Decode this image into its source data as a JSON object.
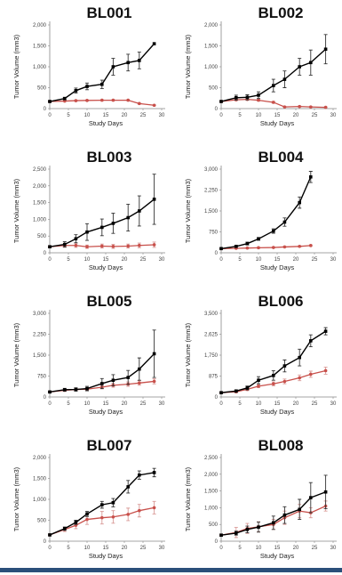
{
  "colors": {
    "treated": "#c8504b",
    "control": "#000000",
    "error_treated": "#d99a97",
    "error_control": "#333333",
    "footer": "#2b4f7a"
  },
  "chart_data": [
    {
      "type": "line",
      "title": "BL001",
      "xlabel": "Study Days",
      "ylabel": "Tumor Volume (mm3)",
      "xlim": [
        0,
        30
      ],
      "xticks": [
        0,
        5,
        10,
        15,
        20,
        25,
        30
      ],
      "ylim": [
        0,
        2000
      ],
      "yticks": [
        "0",
        "500",
        "1,000",
        "1,500",
        "2,000"
      ],
      "series": [
        {
          "role": "control",
          "x": [
            0,
            4,
            7,
            10,
            14,
            17,
            21,
            24,
            28
          ],
          "y": [
            170,
            240,
            430,
            530,
            580,
            1000,
            1100,
            1150,
            1550
          ],
          "err": [
            20,
            30,
            60,
            80,
            100,
            200,
            200,
            200,
            0
          ]
        },
        {
          "role": "treated",
          "x": [
            0,
            4,
            7,
            10,
            14,
            17,
            21,
            24,
            28
          ],
          "y": [
            170,
            180,
            190,
            195,
            200,
            200,
            200,
            120,
            80
          ],
          "err": [
            10,
            10,
            10,
            10,
            10,
            10,
            10,
            10,
            10
          ]
        }
      ]
    },
    {
      "type": "line",
      "title": "BL002",
      "xlabel": "Study Days",
      "ylabel": "Tumor Volume (mm3)",
      "xlim": [
        0,
        30
      ],
      "xticks": [
        0,
        5,
        10,
        15,
        20,
        25,
        30
      ],
      "ylim": [
        0,
        2000
      ],
      "yticks": [
        "0",
        "500",
        "1,000",
        "1,500",
        "2,000"
      ],
      "series": [
        {
          "role": "control",
          "x": [
            0,
            4,
            7,
            10,
            14,
            17,
            21,
            24,
            28
          ],
          "y": [
            170,
            260,
            270,
            320,
            550,
            700,
            1000,
            1100,
            1420
          ],
          "err": [
            20,
            60,
            60,
            80,
            150,
            200,
            200,
            300,
            350
          ]
        },
        {
          "role": "treated",
          "x": [
            0,
            4,
            7,
            10,
            14,
            17,
            21,
            24,
            28
          ],
          "y": [
            170,
            210,
            220,
            200,
            150,
            40,
            50,
            40,
            30
          ],
          "err": [
            15,
            20,
            20,
            20,
            20,
            10,
            10,
            10,
            10
          ]
        }
      ]
    },
    {
      "type": "line",
      "title": "BL003",
      "xlabel": "Study Days",
      "ylabel": "Tumor Volume (mm3)",
      "xlim": [
        0,
        30
      ],
      "xticks": [
        0,
        5,
        10,
        15,
        20,
        25,
        30
      ],
      "ylim": [
        0,
        2500
      ],
      "yticks": [
        "0",
        "500",
        "1,000",
        "1,500",
        "2,000",
        "2,500"
      ],
      "series": [
        {
          "role": "control",
          "x": [
            0,
            4,
            7,
            10,
            14,
            17,
            21,
            24,
            28
          ],
          "y": [
            180,
            250,
            420,
            620,
            760,
            880,
            1050,
            1250,
            1600
          ],
          "err": [
            30,
            80,
            120,
            250,
            250,
            300,
            400,
            450,
            750
          ]
        },
        {
          "role": "treated",
          "x": [
            0,
            4,
            7,
            10,
            14,
            17,
            21,
            24,
            28
          ],
          "y": [
            180,
            220,
            220,
            180,
            200,
            190,
            200,
            220,
            240
          ],
          "err": [
            20,
            60,
            60,
            50,
            60,
            60,
            60,
            70,
            80
          ]
        }
      ]
    },
    {
      "type": "line",
      "title": "BL004",
      "xlabel": "Study Days",
      "ylabel": "Tumor Volume (mm3)",
      "xlim": [
        0,
        30
      ],
      "xticks": [
        0,
        5,
        10,
        15,
        20,
        25,
        30
      ],
      "ylim": [
        0,
        3000
      ],
      "yticks": [
        "0",
        "750",
        "1,500",
        "2,250",
        "3,000"
      ],
      "series": [
        {
          "role": "control",
          "x": [
            0,
            4,
            7,
            10,
            14,
            17,
            21,
            24
          ],
          "y": [
            150,
            230,
            330,
            500,
            780,
            1100,
            1800,
            2720
          ],
          "err": [
            20,
            30,
            50,
            50,
            80,
            150,
            200,
            200
          ]
        },
        {
          "role": "treated",
          "x": [
            0,
            4,
            7,
            10,
            14,
            17,
            21,
            24
          ],
          "y": [
            150,
            160,
            170,
            180,
            190,
            210,
            230,
            260
          ],
          "err": [
            15,
            15,
            15,
            15,
            15,
            15,
            20,
            20
          ]
        }
      ]
    },
    {
      "type": "line",
      "title": "BL005",
      "xlabel": "Study Days",
      "ylabel": "Tumor Volume (mm3)",
      "xlim": [
        0,
        30
      ],
      "xticks": [
        0,
        5,
        10,
        15,
        20,
        25,
        30
      ],
      "ylim": [
        0,
        3000
      ],
      "yticks": [
        "0",
        "750",
        "1,500",
        "2,250",
        "3,000"
      ],
      "series": [
        {
          "role": "control",
          "x": [
            0,
            4,
            7,
            10,
            14,
            17,
            21,
            24,
            28
          ],
          "y": [
            180,
            260,
            270,
            300,
            480,
            600,
            700,
            1000,
            1550
          ],
          "err": [
            20,
            50,
            60,
            80,
            180,
            200,
            250,
            400,
            850
          ]
        },
        {
          "role": "treated",
          "x": [
            0,
            4,
            7,
            10,
            14,
            17,
            21,
            24,
            28
          ],
          "y": [
            180,
            240,
            270,
            280,
            350,
            420,
            460,
            500,
            560
          ],
          "err": [
            20,
            30,
            40,
            50,
            60,
            70,
            80,
            80,
            90
          ]
        }
      ]
    },
    {
      "type": "line",
      "title": "BL006",
      "xlabel": "Study Days",
      "ylabel": "Tumor Volume (mm3)",
      "xlim": [
        0,
        30
      ],
      "xticks": [
        0,
        5,
        10,
        15,
        20,
        25,
        30
      ],
      "ylim": [
        0,
        3500
      ],
      "yticks": [
        "0",
        "875",
        "1,750",
        "2,625",
        "3,500"
      ],
      "series": [
        {
          "role": "control",
          "x": [
            0,
            4,
            7,
            10,
            14,
            17,
            21,
            24,
            28
          ],
          "y": [
            180,
            250,
            380,
            700,
            900,
            1300,
            1650,
            2350,
            2750
          ],
          "err": [
            30,
            50,
            80,
            150,
            200,
            250,
            350,
            250,
            150
          ]
        },
        {
          "role": "treated",
          "x": [
            0,
            4,
            7,
            10,
            14,
            17,
            21,
            24,
            28
          ],
          "y": [
            180,
            220,
            320,
            450,
            550,
            650,
            800,
            950,
            1100
          ],
          "err": [
            20,
            40,
            50,
            60,
            80,
            100,
            120,
            130,
            150
          ]
        }
      ]
    },
    {
      "type": "line",
      "title": "BL007",
      "xlabel": "Study Days",
      "ylabel": "Tumor Volume (mm3)",
      "xlim": [
        0,
        30
      ],
      "xticks": [
        0,
        5,
        10,
        15,
        20,
        25,
        30
      ],
      "ylim": [
        0,
        2000
      ],
      "yticks": [
        "0",
        "500",
        "1,000",
        "1,500",
        "2,000"
      ],
      "series": [
        {
          "role": "control",
          "x": [
            0,
            4,
            7,
            10,
            14,
            17,
            21,
            24,
            28
          ],
          "y": [
            150,
            300,
            450,
            650,
            870,
            920,
            1300,
            1580,
            1640
          ],
          "err": [
            20,
            40,
            50,
            60,
            80,
            100,
            150,
            100,
            100
          ]
        },
        {
          "role": "treated",
          "x": [
            0,
            4,
            7,
            10,
            14,
            17,
            21,
            24,
            28
          ],
          "y": [
            150,
            280,
            380,
            520,
            560,
            580,
            640,
            730,
            800
          ],
          "err": [
            20,
            50,
            80,
            120,
            150,
            150,
            150,
            150,
            150
          ]
        }
      ]
    },
    {
      "type": "line",
      "title": "BL008",
      "xlabel": "Study Days",
      "ylabel": "Tumor Volume (mm3)",
      "xlim": [
        0,
        30
      ],
      "xticks": [
        0,
        5,
        10,
        15,
        20,
        25,
        30
      ],
      "ylim": [
        0,
        2500
      ],
      "yticks": [
        "0",
        "500",
        "1,000",
        "1,500",
        "2,000",
        "2,500"
      ],
      "series": [
        {
          "role": "control",
          "x": [
            0,
            4,
            7,
            10,
            14,
            17,
            21,
            24,
            28
          ],
          "y": [
            180,
            240,
            350,
            420,
            550,
            780,
            950,
            1300,
            1470
          ],
          "err": [
            30,
            60,
            100,
            150,
            200,
            250,
            300,
            450,
            500
          ]
        },
        {
          "role": "treated",
          "x": [
            0,
            4,
            7,
            10,
            14,
            17,
            21,
            24,
            28
          ],
          "y": [
            180,
            260,
            380,
            430,
            500,
            700,
            900,
            850,
            1050
          ],
          "err": [
            30,
            150,
            150,
            150,
            150,
            200,
            200,
            150,
            150
          ]
        }
      ]
    }
  ]
}
